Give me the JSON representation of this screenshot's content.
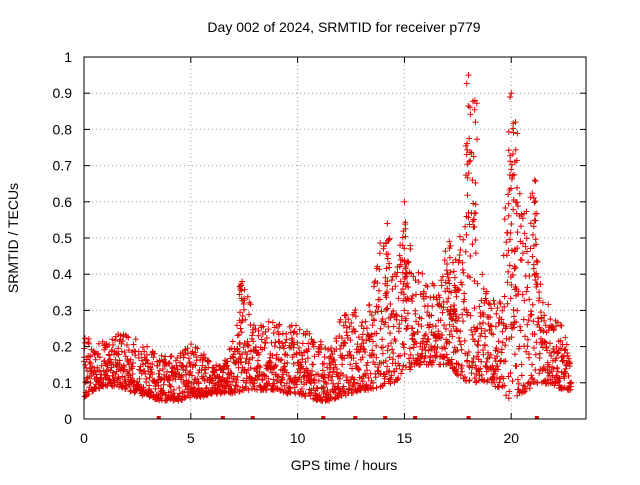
{
  "chart_data": {
    "type": "scatter",
    "title": "Day 002 of 2024, SRMTID for receiver p779",
    "xlabel": "GPS time / hours",
    "ylabel": "SRMTID / TECUs",
    "xlim": [
      0,
      23.5
    ],
    "ylim": [
      0,
      1
    ],
    "x_ticks": [
      0,
      5,
      10,
      15,
      20
    ],
    "x_tick_labels": [
      "0",
      "5",
      "10",
      "15",
      "20"
    ],
    "y_ticks": [
      0,
      0.1,
      0.2,
      0.3,
      0.4,
      0.5,
      0.6,
      0.7,
      0.8,
      0.9,
      1
    ],
    "y_tick_labels": [
      "0",
      "0.1",
      "0.2",
      "0.3",
      "0.4",
      "0.5",
      "0.6",
      "0.7",
      "0.8",
      "0.9",
      "1"
    ],
    "grid": true,
    "marker": "plus",
    "color": "#e00000",
    "series": [
      {
        "name": "SRMTID",
        "envelope_hours": [
          0.0,
          0.5,
          1.0,
          1.5,
          2.0,
          2.5,
          3.0,
          3.5,
          4.0,
          4.5,
          5.0,
          5.5,
          6.0,
          6.5,
          7.0,
          7.5,
          8.0,
          8.5,
          9.0,
          9.5,
          10.0,
          10.5,
          11.0,
          11.5,
          12.0,
          12.5,
          13.0,
          13.5,
          14.0,
          14.5,
          15.0,
          15.5,
          16.0,
          16.5,
          17.0,
          17.5,
          18.0,
          18.5,
          19.0,
          19.5,
          20.0,
          20.5,
          21.0,
          21.5,
          22.0,
          22.5,
          22.8
        ],
        "envelope_low": [
          0.06,
          0.08,
          0.09,
          0.09,
          0.08,
          0.07,
          0.06,
          0.05,
          0.05,
          0.05,
          0.06,
          0.06,
          0.07,
          0.07,
          0.07,
          0.08,
          0.08,
          0.08,
          0.08,
          0.07,
          0.07,
          0.06,
          0.05,
          0.05,
          0.06,
          0.07,
          0.08,
          0.08,
          0.09,
          0.1,
          0.12,
          0.15,
          0.15,
          0.15,
          0.15,
          0.12,
          0.1,
          0.1,
          0.1,
          0.08,
          0.05,
          0.07,
          0.09,
          0.1,
          0.09,
          0.08,
          0.08
        ],
        "envelope_high": [
          0.24,
          0.2,
          0.22,
          0.24,
          0.24,
          0.22,
          0.2,
          0.18,
          0.17,
          0.19,
          0.21,
          0.19,
          0.15,
          0.15,
          0.22,
          0.38,
          0.28,
          0.27,
          0.28,
          0.27,
          0.29,
          0.24,
          0.22,
          0.2,
          0.28,
          0.32,
          0.28,
          0.35,
          0.54,
          0.38,
          0.6,
          0.43,
          0.4,
          0.36,
          0.49,
          0.4,
          0.95,
          0.46,
          0.32,
          0.35,
          0.9,
          0.58,
          0.66,
          0.35,
          0.28,
          0.25,
          0.14
        ],
        "peaks": [
          [
            7.4,
            0.38
          ],
          [
            14.2,
            0.54
          ],
          [
            15.0,
            0.6
          ],
          [
            17.1,
            0.49
          ],
          [
            17.4,
            0.44
          ],
          [
            18.0,
            0.95
          ],
          [
            18.3,
            0.88
          ],
          [
            20.0,
            0.9
          ],
          [
            20.2,
            0.82
          ],
          [
            21.1,
            0.66
          ]
        ],
        "zero_points_hours": [
          3.5,
          6.5,
          7.9,
          11.2,
          12.7,
          14.1,
          15.5,
          18.0,
          21.2
        ]
      }
    ]
  }
}
